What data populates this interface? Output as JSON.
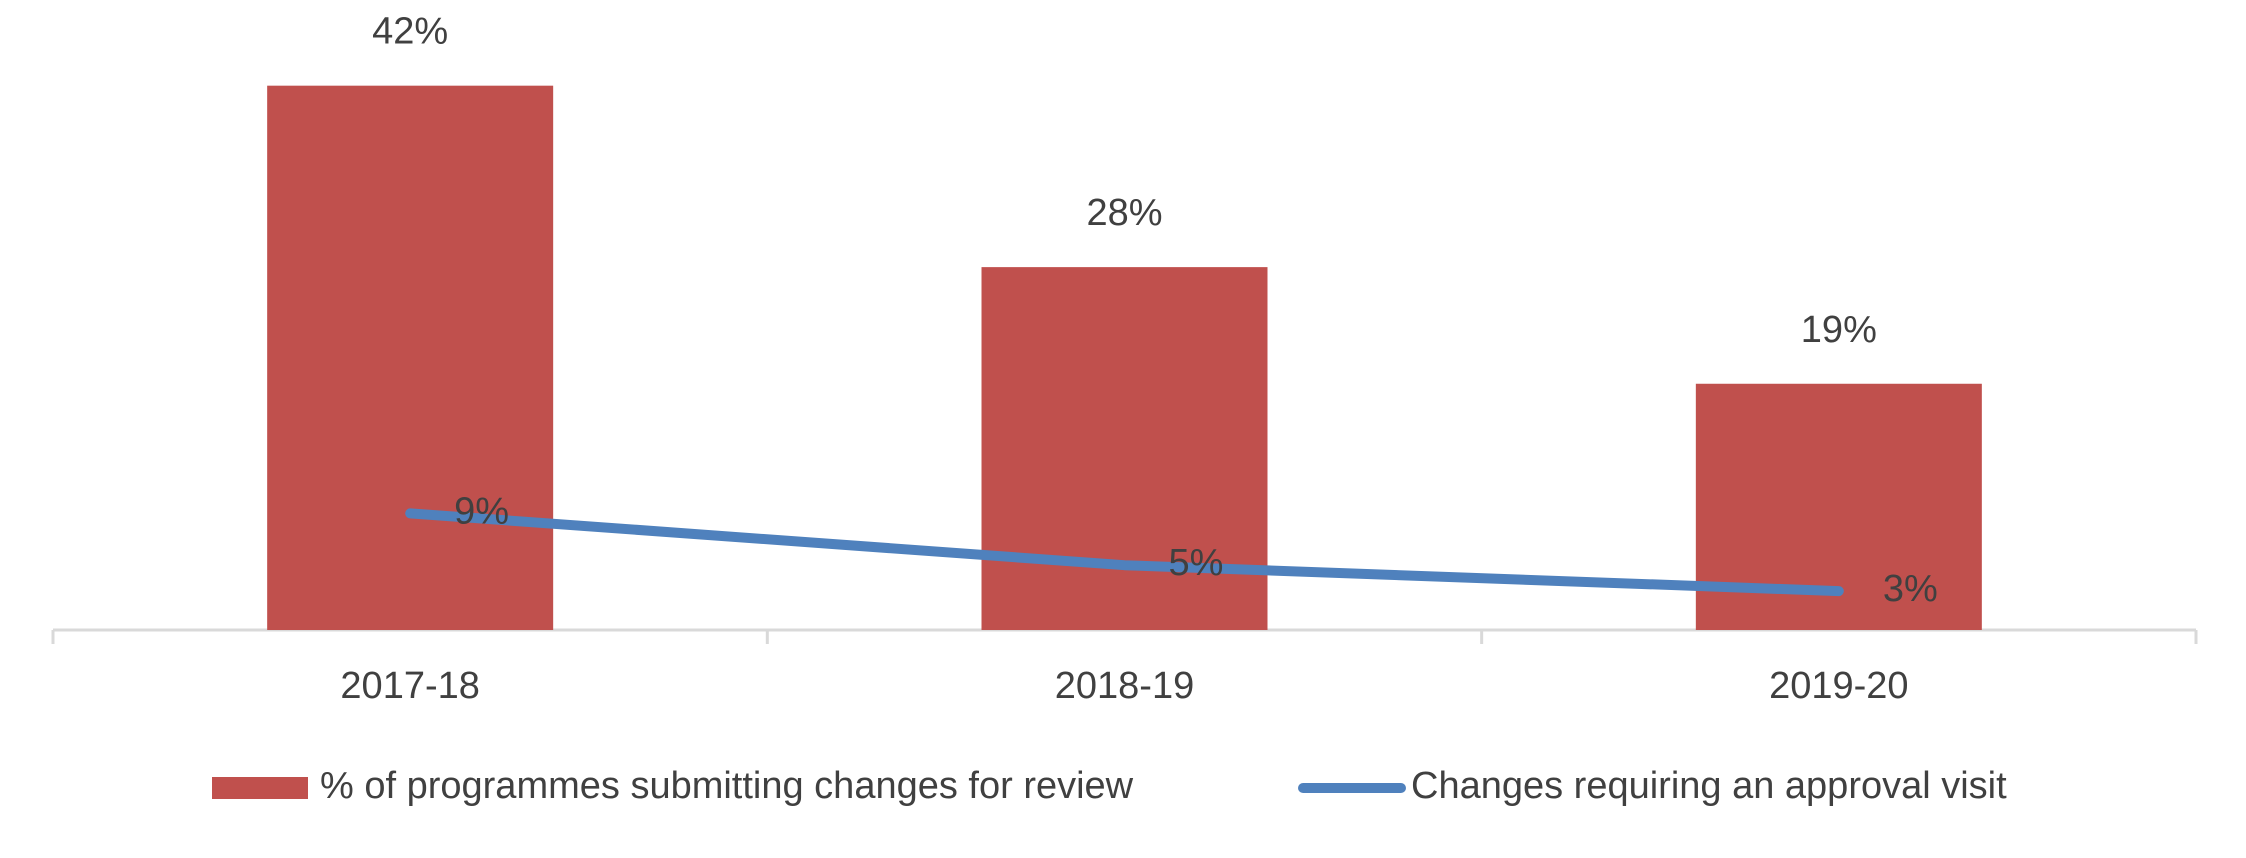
{
  "chart_data": {
    "type": "combo",
    "categories": [
      "2017-18",
      "2018-19",
      "2019-20"
    ],
    "series": [
      {
        "name": "% of programmes submitting changes for review",
        "type": "bar",
        "color": "#c0504d",
        "values": [
          42,
          28,
          19
        ],
        "value_labels": [
          "42%",
          "28%",
          "19%"
        ]
      },
      {
        "name": "Changes requiring an approval visit",
        "type": "line",
        "color": "#4f81bd",
        "values": [
          9,
          5,
          3
        ],
        "value_labels": [
          "9%",
          "5%",
          "3%"
        ]
      }
    ],
    "legend": "bottom"
  }
}
